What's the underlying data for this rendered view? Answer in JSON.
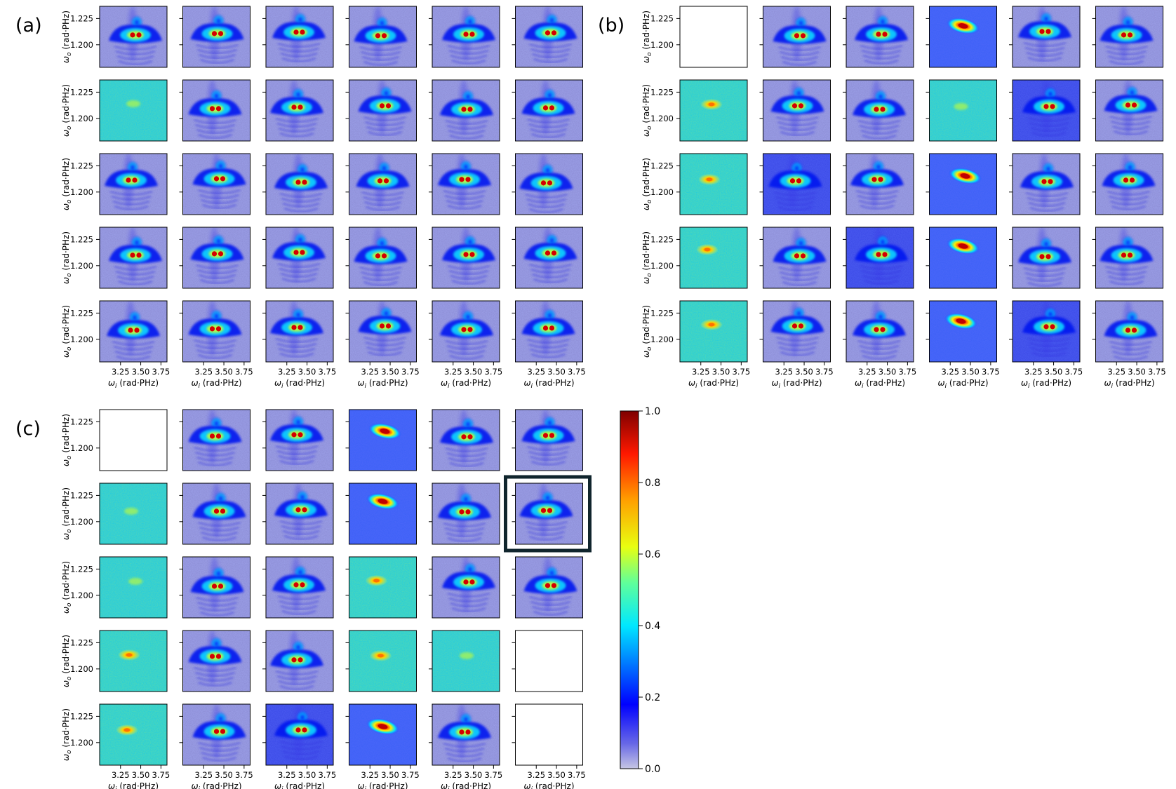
{
  "figure": {
    "panels": [
      {
        "label": "(a)",
        "rows": [
          [
            "noise-blue",
            "noise-blue",
            "noise-blue",
            "noise-blue",
            "noise-blue",
            "noise-blue"
          ],
          [
            "noise-green",
            "noise-blue",
            "noise-blue",
            "noise-blue",
            "noise-blue",
            "noise-blue"
          ],
          [
            "noise-blue",
            "noise-blue",
            "noise-blue",
            "noise-blue",
            "noise-blue",
            "noise-blue"
          ],
          [
            "noise-blue",
            "noise-blue",
            "noise-blue",
            "noise-blue",
            "noise-blue",
            "noise-blue"
          ],
          [
            "noise-blue",
            "noise-blue",
            "noise-blue",
            "noise-blue",
            "noise-blue",
            "noise-blue"
          ]
        ]
      },
      {
        "label": "(b)",
        "rows": [
          [
            "empty",
            "noise-blue",
            "noise-blue",
            "spot-blue",
            "noise-blue",
            "noise-blue"
          ],
          [
            "spot-green",
            "noise-blue",
            "noise-blue",
            "noise-green",
            "noise-dark",
            "noise-blue"
          ],
          [
            "spot-green",
            "noise-dark",
            "noise-blue",
            "spot-blue",
            "noise-blue",
            "noise-blue"
          ],
          [
            "spot-green",
            "noise-blue",
            "noise-dark",
            "spot-blue",
            "noise-blue",
            "noise-blue"
          ],
          [
            "spot-green",
            "noise-blue",
            "noise-blue",
            "spot-blue",
            "noise-dark",
            "noise-blue"
          ]
        ]
      },
      {
        "label": "(c)",
        "highlight": [
          1,
          5
        ],
        "rows": [
          [
            "empty",
            "noise-blue",
            "noise-blue",
            "spot-blue",
            "noise-blue",
            "noise-blue"
          ],
          [
            "noise-green",
            "noise-blue",
            "noise-blue",
            "spot-blue",
            "noise-blue",
            "noise-blue"
          ],
          [
            "noise-green",
            "noise-blue",
            "noise-blue",
            "spot-green",
            "noise-blue",
            "noise-blue"
          ],
          [
            "spot-green",
            "noise-blue",
            "noise-blue",
            "spot-green",
            "noise-green",
            "empty"
          ],
          [
            "spot-green",
            "noise-blue",
            "noise-dark",
            "spot-blue",
            "noise-blue",
            "empty"
          ]
        ]
      }
    ],
    "axes": {
      "ylabel": "ω_o (rad·PHz)",
      "xlabel": "ω_i (rad·PHz)",
      "yticks": [
        "1.225",
        "1.200"
      ],
      "xticks": [
        "3.25",
        "3.50",
        "3.75"
      ]
    },
    "colorbar": {
      "ticks": [
        "1.0",
        "0.8",
        "0.6",
        "0.4",
        "0.2",
        "0.0"
      ],
      "colormap": "jet",
      "low_color": "#c6c6e4"
    }
  },
  "chart_data": {
    "type": "heatmap",
    "x_axis": {
      "label": "ω_i (rad·PHz)",
      "ticks": [
        3.25,
        3.5,
        3.75
      ],
      "range": [
        3.0,
        3.8
      ]
    },
    "y_axis": {
      "label": "ω_o (rad·PHz)",
      "ticks": [
        1.2,
        1.225
      ],
      "range": [
        1.18,
        1.24
      ]
    },
    "color_range": [
      0.0,
      1.0
    ],
    "grid": false,
    "layout": {
      "panels": 3,
      "rows_per_panel": 5,
      "cols_per_panel": 6
    }
  }
}
